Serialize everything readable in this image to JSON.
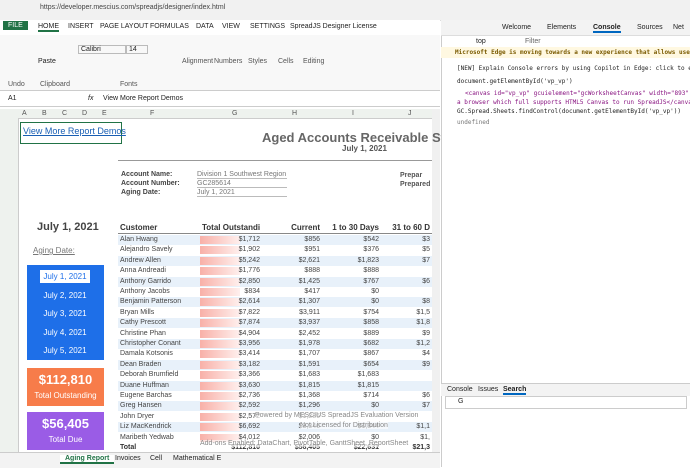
{
  "browser": {
    "url": "https://developer.mescius.com/spreadjs/designer/index.html"
  },
  "ribbon": {
    "tabs": [
      "FILE",
      "HOME",
      "INSERT",
      "PAGE LAYOUT",
      "FORMULAS",
      "DATA",
      "VIEW",
      "SETTINGS",
      "SpreadJS Designer License"
    ],
    "groups": [
      "Undo",
      "Clipboard",
      "Fonts",
      "Alignment",
      "Numbers",
      "Styles",
      "Cells",
      "Editing"
    ],
    "paste": "Paste",
    "font": "Calibri",
    "size": "14"
  },
  "formula_bar": {
    "cell": "A1",
    "fx": "fx",
    "content": "View More Report Demos"
  },
  "columns": [
    "A",
    "B",
    "C",
    "D",
    "E",
    "F",
    "G",
    "H",
    "I",
    "J"
  ],
  "sheet": {
    "link": "View More Report Demos",
    "title": "Aged Accounts Receivable Stateme",
    "date": "July 1, 2021",
    "fields": [
      [
        "Account Name:",
        "Division 1 Southwest Region"
      ],
      [
        "Account Number:",
        "GC285614"
      ],
      [
        "Aging Date:",
        "July 1, 2021"
      ]
    ],
    "prepared": [
      "Prepar",
      "Prepared"
    ],
    "side_date": "July 1, 2021",
    "aging_label": "Aging Date:",
    "dates": [
      "July 1, 2021",
      "July 2, 2021",
      "July 3, 2021",
      "July 4, 2021",
      "July 5, 2021"
    ],
    "kpis": [
      [
        "$112,810",
        "Total Outstanding"
      ],
      [
        "$56,405",
        "Total Due"
      ]
    ],
    "table": {
      "header": [
        "Customer",
        "Total Outstanding",
        "Current",
        "1 to 30 Days",
        "31 to 60 D"
      ],
      "rows": [
        [
          "Alan Hwang",
          "$1,712",
          "$856",
          "$542",
          "$3"
        ],
        [
          "Alejandro Savely",
          "$1,902",
          "$951",
          "$376",
          "$5"
        ],
        [
          "Andrew Allen",
          "$5,242",
          "$2,621",
          "$1,823",
          "$7"
        ],
        [
          "Anna Andreadi",
          "$1,776",
          "$888",
          "$888",
          ""
        ],
        [
          "Anthony Garrido",
          "$2,850",
          "$1,425",
          "$767",
          "$6"
        ],
        [
          "Anthony Jacobs",
          "$834",
          "$417",
          "$0",
          ""
        ],
        [
          "Benjamin Patterson",
          "$2,614",
          "$1,307",
          "$0",
          "$8"
        ],
        [
          "Bryan Mills",
          "$7,822",
          "$3,911",
          "$754",
          "$1,5"
        ],
        [
          "Cathy Prescott",
          "$7,874",
          "$3,937",
          "$858",
          "$1,8"
        ],
        [
          "Christine Phan",
          "$4,904",
          "$2,452",
          "$889",
          "$9"
        ],
        [
          "Christopher Conant",
          "$3,956",
          "$1,978",
          "$682",
          "$1,2"
        ],
        [
          "Damala Kotsonis",
          "$3,414",
          "$1,707",
          "$867",
          "$4"
        ],
        [
          "Dean Braden",
          "$3,182",
          "$1,591",
          "$654",
          "$9"
        ],
        [
          "Deborah Brumfield",
          "$3,366",
          "$1,683",
          "$1,683",
          ""
        ],
        [
          "Duane Huffman",
          "$3,630",
          "$1,815",
          "$1,815",
          ""
        ],
        [
          "Eugene Barchas",
          "$2,736",
          "$1,368",
          "$714",
          "$6"
        ],
        [
          "Greg Hansen",
          "$2,592",
          "$1,296",
          "$0",
          "$7"
        ],
        [
          "John Dryer",
          "$2,572",
          "$1,286",
          "",
          ""
        ],
        [
          "Liz MacKendrick",
          "$6,692",
          "$3,346",
          "$1,344",
          "$1,1"
        ],
        [
          "Maribeth Yedwab",
          "$4,012",
          "$2,006",
          "$0",
          "$1,"
        ]
      ],
      "total": [
        "Total",
        "$112,810",
        "$56,405",
        "$22,631",
        "$21,3"
      ]
    },
    "watermark": [
      "Powered by MESCIUS SpreadJS Evaluation Version",
      "Not Licensed for Distribution",
      "Add-ons Enabled: DataChart, PivotTable, GanttSheet, ReportSheet"
    ]
  },
  "sheet_tabs": [
    "Aging Report",
    "Invoices",
    "Cell",
    "Mathematical E"
  ],
  "devtools": {
    "tabs": [
      "Welcome",
      "Elements",
      "Console",
      "Sources",
      "Net"
    ],
    "context": "top",
    "filter": "Filter",
    "lines": [
      "Microsoft Edge is moving towards a new experience that allows users to cho",
      "[NEW] Explain Console errors by using Copilot in Edge: click  to explain",
      "document.getElementById('vp_vp')",
      "<canvas id=\"vp_vp\" gcuielement=\"gcWorksheetCanvas\" width=\"893\" height=\"",
      "a browser which full supports HTML5 Canvas to run SpreadJS</canvas>",
      "GC.Spread.Sheets.findControl(document.getElementById('vp_vp'))",
      "undefined"
    ],
    "drawer_tabs": [
      "Console",
      "Issues",
      "Search"
    ],
    "search": "G"
  }
}
